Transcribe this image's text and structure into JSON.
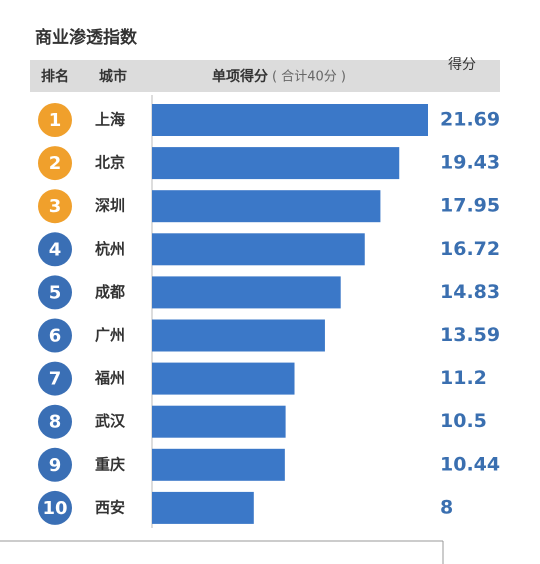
{
  "chart_data": {
    "type": "bar",
    "title": "商业渗透指数",
    "header": {
      "rank": "排名",
      "city": "城市",
      "score": "单项得分",
      "note": "( 合计40分 )",
      "value": "得分"
    },
    "ranks": [
      "1",
      "2",
      "3",
      "4",
      "5",
      "6",
      "7",
      "8",
      "9",
      "10"
    ],
    "categories": [
      "上海",
      "北京",
      "深圳",
      "杭州",
      "成都",
      "广州",
      "福州",
      "武汉",
      "重庆",
      "西安"
    ],
    "values": [
      21.69,
      19.43,
      17.95,
      16.72,
      14.83,
      13.59,
      11.2,
      10.5,
      10.44,
      8
    ],
    "color": "#3b78c8",
    "label_color": "#3a6fb0",
    "rank_colors": [
      "#f0a02c",
      "#f0a02c",
      "#f0a02c",
      "#3a6fb5",
      "#3a6fb5",
      "#3a6fb5",
      "#3a6fb5",
      "#3a6fb5",
      "#3a6fb5",
      "#3a6fb5"
    ]
  }
}
